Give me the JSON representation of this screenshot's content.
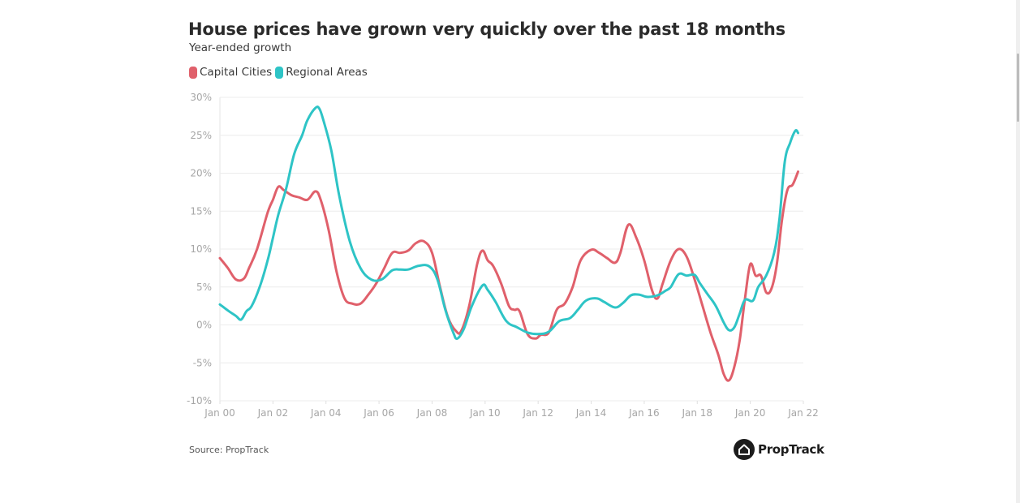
{
  "chart_data": {
    "type": "line",
    "title": "House prices have grown very quickly over the past 18 months",
    "subtitle": "Year-ended growth",
    "xlabel": "",
    "ylabel": "",
    "x_unit": "years since Jan 2000",
    "xlim": [
      0,
      22
    ],
    "ylim": [
      -10,
      30
    ],
    "grid": true,
    "legend_position": "top-left",
    "x_ticks": [
      {
        "value": 0,
        "label": "Jan 00"
      },
      {
        "value": 2,
        "label": "Jan 02"
      },
      {
        "value": 4,
        "label": "Jan 04"
      },
      {
        "value": 6,
        "label": "Jan 06"
      },
      {
        "value": 8,
        "label": "Jan 08"
      },
      {
        "value": 10,
        "label": "Jan 10"
      },
      {
        "value": 12,
        "label": "Jan 12"
      },
      {
        "value": 14,
        "label": "Jan 14"
      },
      {
        "value": 16,
        "label": "Jan 16"
      },
      {
        "value": 18,
        "label": "Jan 18"
      },
      {
        "value": 20,
        "label": "Jan 20"
      },
      {
        "value": 22,
        "label": "Jan 22"
      }
    ],
    "y_ticks": [
      {
        "value": 30,
        "label": "30%"
      },
      {
        "value": 25,
        "label": "25%"
      },
      {
        "value": 20,
        "label": "20%"
      },
      {
        "value": 15,
        "label": "15%"
      },
      {
        "value": 10,
        "label": "10%"
      },
      {
        "value": 5,
        "label": "5%"
      },
      {
        "value": 0,
        "label": "0%"
      },
      {
        "value": -5,
        "label": "-5%"
      },
      {
        "value": -10,
        "label": "-10%"
      }
    ],
    "series": [
      {
        "name": "Capital Cities",
        "color": "#e0606b",
        "x": [
          0,
          0.3,
          0.6,
          0.9,
          1.1,
          1.4,
          1.8,
          2.0,
          2.2,
          2.4,
          2.7,
          3.0,
          3.3,
          3.6,
          3.8,
          4.1,
          4.4,
          4.7,
          5.0,
          5.3,
          5.6,
          5.9,
          6.2,
          6.5,
          6.8,
          7.1,
          7.4,
          7.7,
          8.0,
          8.3,
          8.6,
          8.9,
          9.1,
          9.4,
          9.7,
          9.9,
          10.1,
          10.3,
          10.6,
          10.9,
          11.1,
          11.3,
          11.6,
          11.9,
          12.1,
          12.4,
          12.7,
          13.0,
          13.3,
          13.6,
          14.0,
          14.3,
          14.6,
          14.9,
          15.1,
          15.4,
          15.7,
          16.0,
          16.3,
          16.5,
          16.7,
          17.0,
          17.3,
          17.6,
          17.9,
          18.2,
          18.5,
          18.8,
          19.0,
          19.2,
          19.4,
          19.6,
          19.8,
          20.0,
          20.2,
          20.4,
          20.6,
          20.8,
          21.0,
          21.2,
          21.4,
          21.6,
          21.8
        ],
        "values": [
          8.8,
          7.5,
          6.0,
          6.1,
          7.5,
          10.0,
          14.8,
          16.5,
          18.2,
          17.8,
          17.1,
          16.8,
          16.5,
          17.6,
          16.5,
          12.5,
          7.0,
          3.5,
          2.8,
          2.8,
          4.0,
          5.5,
          7.5,
          9.5,
          9.5,
          9.8,
          10.8,
          11.0,
          9.5,
          5.0,
          1.0,
          -0.8,
          -0.8,
          2.5,
          8.0,
          9.8,
          8.5,
          7.8,
          5.5,
          2.5,
          2.0,
          1.8,
          -1.2,
          -1.8,
          -1.3,
          -1.0,
          2.0,
          2.8,
          5.0,
          8.5,
          9.9,
          9.5,
          8.8,
          8.2,
          9.5,
          13.2,
          11.5,
          8.5,
          4.5,
          3.5,
          5.5,
          8.5,
          10.0,
          9.0,
          6.0,
          2.5,
          -1.0,
          -4.0,
          -6.5,
          -7.3,
          -5.5,
          -2.0,
          3.5,
          8.0,
          6.5,
          6.5,
          4.3,
          4.8,
          8.0,
          14.0,
          17.8,
          18.5,
          20.2
        ]
      },
      {
        "name": "Regional Areas",
        "color": "#2ec4c6",
        "x": [
          0,
          0.3,
          0.6,
          0.8,
          1.0,
          1.2,
          1.5,
          1.8,
          2.0,
          2.2,
          2.5,
          2.8,
          3.1,
          3.3,
          3.6,
          3.75,
          3.9,
          4.2,
          4.5,
          4.9,
          5.3,
          5.7,
          6.1,
          6.5,
          6.8,
          7.1,
          7.5,
          7.9,
          8.2,
          8.5,
          8.8,
          8.95,
          9.2,
          9.5,
          9.9,
          10.1,
          10.4,
          10.8,
          11.2,
          11.6,
          12.0,
          12.4,
          12.8,
          13.2,
          13.5,
          13.8,
          14.2,
          14.5,
          14.9,
          15.2,
          15.5,
          15.8,
          16.1,
          16.5,
          16.8,
          17.0,
          17.3,
          17.6,
          17.9,
          18.1,
          18.4,
          18.7,
          19.0,
          19.2,
          19.4,
          19.6,
          19.8,
          20.1,
          20.3,
          20.6,
          20.9,
          21.1,
          21.3,
          21.5,
          21.7,
          21.8
        ],
        "values": [
          2.7,
          1.9,
          1.2,
          0.7,
          1.8,
          2.5,
          5.0,
          8.5,
          11.5,
          14.5,
          18.0,
          22.5,
          25.0,
          27.0,
          28.6,
          28.5,
          27.0,
          23.0,
          17.0,
          11.0,
          7.5,
          6.0,
          6.0,
          7.2,
          7.3,
          7.3,
          7.8,
          7.7,
          6.0,
          2.0,
          -1.0,
          -1.8,
          -0.5,
          2.5,
          5.2,
          4.6,
          3.0,
          0.5,
          -0.3,
          -1.0,
          -1.2,
          -0.9,
          0.5,
          0.9,
          2.0,
          3.2,
          3.5,
          3.0,
          2.3,
          2.9,
          3.9,
          4.0,
          3.7,
          3.9,
          4.5,
          5.0,
          6.7,
          6.5,
          6.6,
          5.5,
          4.0,
          2.5,
          0.3,
          -0.7,
          -0.3,
          1.5,
          3.3,
          3.2,
          5.0,
          6.5,
          9.5,
          14.0,
          21.5,
          24.0,
          25.6,
          25.3
        ]
      }
    ]
  },
  "header": {
    "title": "House prices have grown very quickly over the past 18 months",
    "subtitle": "Year-ended growth"
  },
  "legend": [
    {
      "label": "Capital Cities",
      "color": "#e0606b"
    },
    {
      "label": "Regional Areas",
      "color": "#2ec4c6"
    }
  ],
  "footer": {
    "source": "Source: PropTrack",
    "logo_text": "PropTrack",
    "logo_icon": "house-icon"
  }
}
